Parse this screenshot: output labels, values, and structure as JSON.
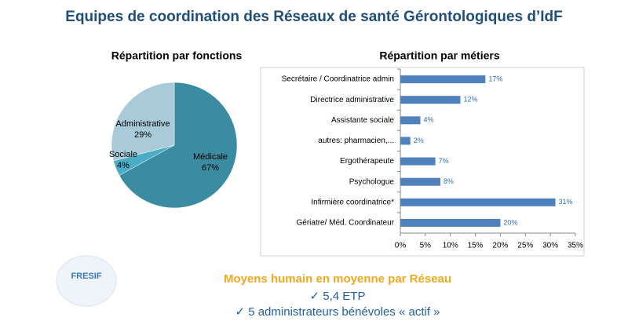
{
  "title": "Equipes de coordination des Réseaux de santé Gérontologiques d’IdF",
  "chart_data": [
    {
      "type": "pie",
      "title": "Répartition par fonctions",
      "categories": [
        "Médicale",
        "Sociale",
        "Administrative"
      ],
      "values": [
        67,
        4,
        29
      ],
      "value_labels": [
        "67%",
        "4%",
        "29%"
      ],
      "colors": [
        "#3b8ba1",
        "#4bacc6",
        "#a9cbd9"
      ]
    },
    {
      "type": "hbar",
      "title": "Répartition par métiers",
      "categories": [
        "Secrétaire / Coordinatrice admin",
        "Directrice administrative",
        "Assistante sociale",
        "autres: pharmacien,...",
        "Ergothérapeute",
        "Psychologue",
        "Infirmière coordinatrice*",
        "Gériatre/ Méd. Coordinateur"
      ],
      "values": [
        17,
        12,
        4,
        2,
        7,
        8,
        31,
        20
      ],
      "value_labels": [
        "17%",
        "12%",
        "4%",
        "2%",
        "7%",
        "8%",
        "31%",
        "20%"
      ],
      "color": "#4f81bd",
      "xlim": [
        0,
        35
      ],
      "xticks": [
        {
          "value": 0,
          "label": "0%"
        },
        {
          "value": 5,
          "label": "5%"
        },
        {
          "value": 10,
          "label": "10%"
        },
        {
          "value": 15,
          "label": "15%"
        },
        {
          "value": 20,
          "label": "20%"
        },
        {
          "value": 25,
          "label": "25%"
        },
        {
          "value": 30,
          "label": "30%"
        },
        {
          "value": 35,
          "label": "35%"
        }
      ]
    }
  ],
  "footer": {
    "heading": "Moyens humain en moyenne par Réseau",
    "lines": [
      "✓ 5,4 ETP",
      "✓ 5 administrateurs bénévoles « actif »"
    ]
  },
  "logo": "FRESIF"
}
